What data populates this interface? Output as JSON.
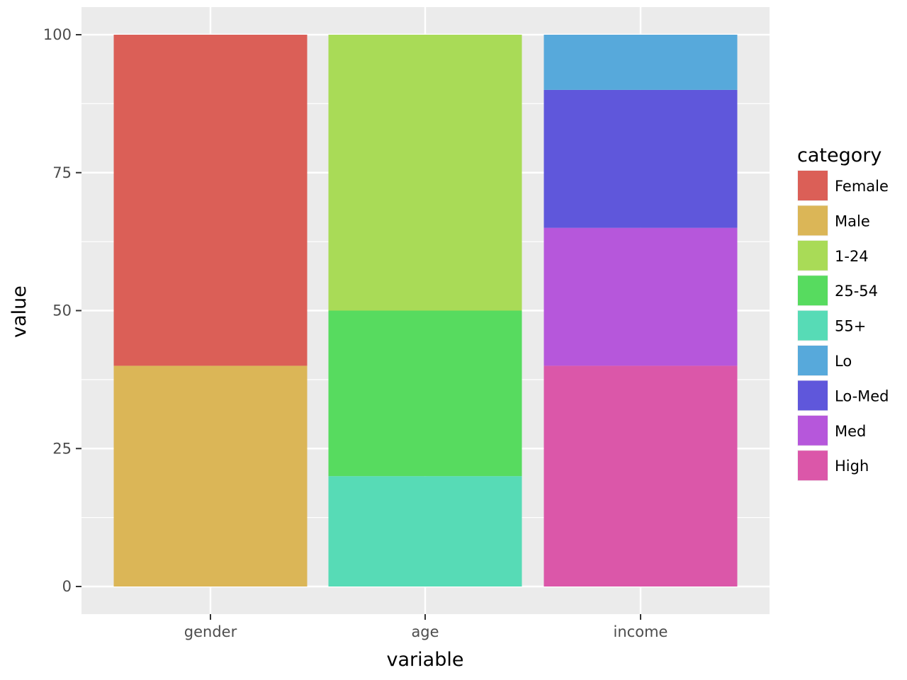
{
  "chart_data": {
    "type": "bar",
    "stacked": true,
    "categories": [
      "gender",
      "age",
      "income"
    ],
    "xlabel": "variable",
    "ylabel": "value",
    "ylim": [
      0,
      100
    ],
    "yticks": [
      0,
      25,
      50,
      75,
      100
    ],
    "grid": true,
    "legend": {
      "title": "category",
      "placement": "right",
      "entries": [
        {
          "name": "Female",
          "color": "#db5f57"
        },
        {
          "name": "Male",
          "color": "#dbb657"
        },
        {
          "name": "1-24",
          "color": "#a9db57"
        },
        {
          "name": "25-54",
          "color": "#57db5f"
        },
        {
          "name": "55+",
          "color": "#57dbb6"
        },
        {
          "name": "Lo",
          "color": "#57a9db"
        },
        {
          "name": "Lo-Med",
          "color": "#5f57db"
        },
        {
          "name": "Med",
          "color": "#b657db"
        },
        {
          "name": "High",
          "color": "#db57a9"
        }
      ]
    },
    "series": [
      {
        "name": "Female",
        "values": [
          60,
          0,
          0
        ]
      },
      {
        "name": "Male",
        "values": [
          40,
          0,
          0
        ]
      },
      {
        "name": "1-24",
        "values": [
          0,
          50,
          0
        ]
      },
      {
        "name": "25-54",
        "values": [
          0,
          30,
          0
        ]
      },
      {
        "name": "55+",
        "values": [
          0,
          20,
          0
        ]
      },
      {
        "name": "Lo",
        "values": [
          0,
          0,
          10
        ]
      },
      {
        "name": "Lo-Med",
        "values": [
          0,
          0,
          25
        ]
      },
      {
        "name": "Med",
        "values": [
          0,
          0,
          25
        ]
      },
      {
        "name": "High",
        "values": [
          0,
          0,
          40
        ]
      }
    ]
  }
}
